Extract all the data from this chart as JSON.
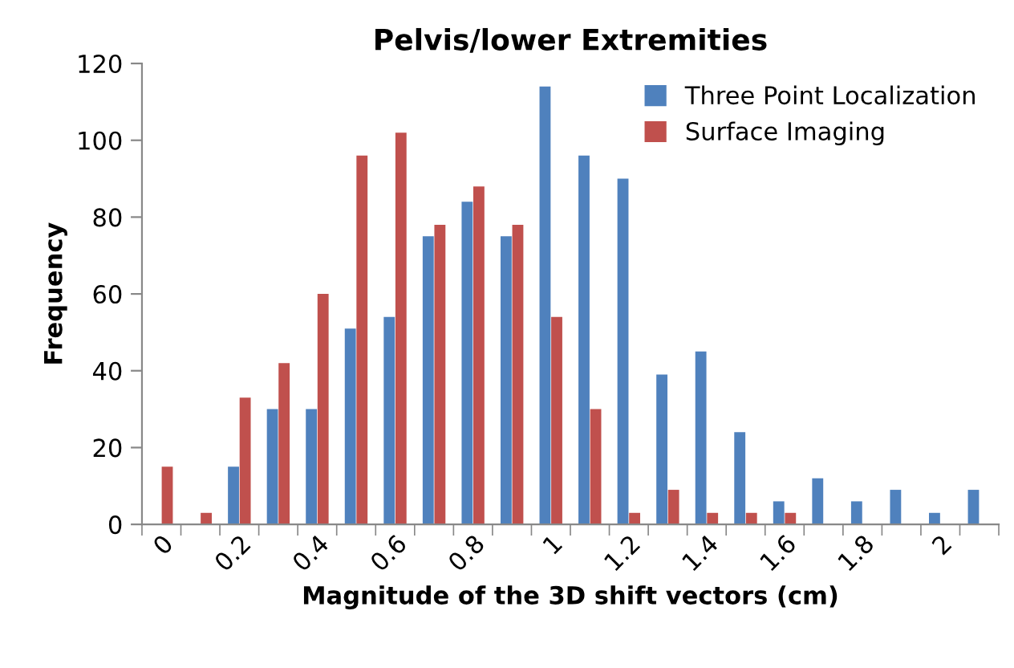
{
  "chart_data": {
    "type": "bar",
    "title": "Pelvis/lower Extremities",
    "xlabel": "Magnitude of the 3D shift vectors (cm)",
    "ylabel": "Frequency",
    "categories": [
      "0",
      null,
      "0.2",
      null,
      "0.4",
      null,
      "0.6",
      null,
      "0.8",
      null,
      "1",
      null,
      "1.2",
      null,
      "1.4",
      null,
      "1.6",
      null,
      "1.8",
      null,
      "2",
      null
    ],
    "series": [
      {
        "name": "Three Point Localization",
        "color": "#4f81bd",
        "values": [
          0,
          0,
          15,
          30,
          30,
          51,
          54,
          75,
          84,
          75,
          114,
          96,
          90,
          39,
          45,
          24,
          6,
          12,
          6,
          9,
          3,
          9
        ]
      },
      {
        "name": "Surface Imaging",
        "color": "#c0504d",
        "values": [
          15,
          3,
          33,
          42,
          60,
          96,
          102,
          78,
          88,
          78,
          54,
          30,
          3,
          9,
          3,
          3,
          3,
          0,
          0,
          0,
          0,
          0
        ]
      }
    ],
    "ylim": [
      0,
      120
    ],
    "yticks": [
      0,
      20,
      40,
      60,
      80,
      100,
      120
    ],
    "grid": false,
    "legend": "top right"
  }
}
